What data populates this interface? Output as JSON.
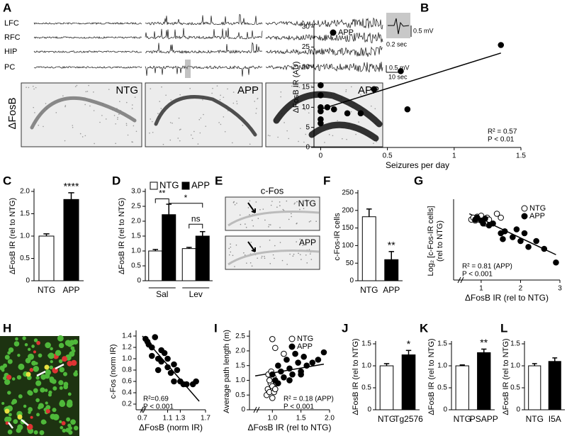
{
  "figure": {
    "panel_a": {
      "letter": "A",
      "channels": [
        "LFC",
        "RFC",
        "HIP",
        "PC"
      ],
      "scale_bars": [
        "0.5 mV",
        "0.2 sec",
        "0.5 mV",
        "10 sec"
      ],
      "row_label": "ΔFosB",
      "image_labels": [
        "NTG",
        "APP",
        "APP"
      ]
    },
    "panel_e": {
      "letter": "E",
      "title": "c-Fos",
      "image_labels": [
        "NTG",
        "APP"
      ]
    },
    "panel_h": {
      "letter": "H"
    }
  },
  "chart_data": [
    {
      "panel": "B",
      "type": "scatter",
      "xlabel": "Seizures per day",
      "ylabel": "ΔFosB IR (AU)",
      "xlim": [
        -0.05,
        1.5
      ],
      "xticks": [
        0,
        0.5,
        1,
        1.5
      ],
      "ylim": [
        0,
        30
      ],
      "yticks": [
        0,
        5,
        10,
        15,
        20,
        25,
        30
      ],
      "series": [
        {
          "name": "APP",
          "marker": "filled",
          "color": "#000000",
          "x": [
            0,
            0,
            0,
            0,
            0,
            0,
            0.05,
            0.1,
            0.2,
            0.3,
            0.4,
            0.6,
            0.65,
            1.35
          ],
          "values": [
            15.5,
            13,
            10,
            9,
            7,
            6,
            10,
            9.5,
            8.5,
            8.5,
            14.5,
            19,
            9.5,
            25.5
          ]
        }
      ],
      "fit": {
        "x": [
          0,
          1.35
        ],
        "y": [
          9.5,
          23.5
        ]
      },
      "annotations": [
        "R² = 0.57",
        "P < 0.01"
      ],
      "legend": true
    },
    {
      "panel": "C",
      "type": "bar",
      "ylabel": "ΔFosB IR (rel to NTG)",
      "categories": [
        "NTG",
        "APP"
      ],
      "values": [
        1.0,
        1.82
      ],
      "errors": [
        0.05,
        0.15
      ],
      "colors": [
        "#ffffff",
        "#000000"
      ],
      "significance": [
        null,
        "****"
      ],
      "ylim": [
        0,
        2.0
      ],
      "yticks": [
        0,
        0.5,
        {
          "value": 1,
          "label": "1.0"
        },
        1.5,
        {
          "value": 2,
          "label": "2.0"
        }
      ]
    },
    {
      "panel": "D",
      "type": "bar",
      "ylabel": "ΔFosB IR (rel to NTG)",
      "categories": [
        "Sal",
        "Lev"
      ],
      "series": [
        {
          "name": "NTG",
          "color": "#ffffff",
          "values": [
            1.0,
            1.08
          ],
          "errors": [
            0.05,
            0.04
          ]
        },
        {
          "name": "APP",
          "color": "#000000",
          "values": [
            2.22,
            1.5
          ],
          "errors": [
            0.35,
            0.15
          ]
        }
      ],
      "annotations": [
        "**",
        "*",
        "ns"
      ],
      "legend": true,
      "ylim": [
        0,
        3.0
      ],
      "yticks": [
        0,
        0.5,
        {
          "value": 1,
          "label": "1.0"
        },
        1.5,
        {
          "value": 2,
          "label": "2.0"
        },
        2.5,
        {
          "value": 3,
          "label": "3.0"
        }
      ]
    },
    {
      "panel": "F",
      "type": "bar",
      "ylabel": "c-Fos-IR cells",
      "categories": [
        "NTG",
        "APP"
      ],
      "values": [
        182,
        60
      ],
      "errors": [
        22,
        23
      ],
      "colors": [
        "#ffffff",
        "#000000"
      ],
      "significance": [
        null,
        "**"
      ],
      "ylim": [
        0,
        250
      ],
      "yticks": [
        0,
        50,
        100,
        150,
        200,
        250
      ]
    },
    {
      "panel": "G",
      "type": "scatter",
      "xlabel": "ΔFosB IR (rel to NTG)",
      "ylabel": [
        "Log₂ [c-Fos-IR cells]",
        "(rel to NTG)"
      ],
      "xlim": [
        0.3,
        3.0
      ],
      "xticks": [
        1,
        2,
        3
      ],
      "ylim": [
        -3,
        1
      ],
      "series": [
        {
          "name": "NTG",
          "marker": "open",
          "color": "#000000",
          "x": [
            0.75,
            0.8,
            0.85,
            0.9,
            0.95,
            1.0,
            1.05,
            1.1,
            1.15,
            1.2,
            1.4,
            1.5
          ],
          "values": [
            0.1,
            0.2,
            0.05,
            0.25,
            0.1,
            0.3,
            0.0,
            -0.1,
            0.2,
            0.1,
            0.4,
            0.2
          ]
        },
        {
          "name": "APP",
          "marker": "filled",
          "color": "#000000",
          "x": [
            0.85,
            0.9,
            1.0,
            1.05,
            1.1,
            1.2,
            1.3,
            1.5,
            1.55,
            1.6,
            1.8,
            1.9,
            2.0,
            2.1,
            2.2,
            2.4,
            2.6,
            2.9
          ],
          "values": [
            0.1,
            0.2,
            0.05,
            -0.1,
            0.15,
            -0.2,
            -0.1,
            -0.6,
            -0.9,
            -0.5,
            -0.8,
            -0.4,
            -1.0,
            -0.6,
            -1.3,
            -1.0,
            -1.4,
            -2.1
          ]
        }
      ],
      "fit": {
        "x": [
          0.7,
          2.9
        ],
        "y": [
          0.4,
          -1.7
        ]
      },
      "annotations": [
        "R² = 0.81 (APP)",
        "P < 0.001"
      ],
      "legend": true
    },
    {
      "panel": "H",
      "type": "scatter",
      "xlabel": "ΔFosB (norm IR)",
      "ylabel": "c-Fos (norm IR)",
      "xlim": [
        0.6,
        1.7
      ],
      "xticks": [
        0.7,
        1.1,
        1.3,
        1.7
      ],
      "ylim": [
        0.1,
        1.45
      ],
      "yticks": [
        0.2,
        0.4,
        0.6,
        0.8,
        {
          "value": 1,
          "label": "1.0"
        },
        1.2,
        1.4
      ],
      "series": [
        {
          "name": "cells",
          "marker": "filled",
          "color": "#000000",
          "x": [
            0.75,
            0.78,
            0.8,
            0.85,
            0.9,
            0.95,
            0.85,
            1.0,
            1.05,
            1.1,
            1.1,
            1.15,
            1.2,
            1.25,
            1.3,
            1.35,
            1.4,
            1.5,
            1.55,
            1.0,
            0.95,
            1.2
          ],
          "values": [
            1.35,
            1.3,
            1.25,
            1.2,
            1.38,
            1.0,
            1.05,
            1.15,
            1.1,
            1.0,
            0.85,
            0.75,
            0.9,
            0.8,
            0.6,
            0.55,
            0.55,
            0.55,
            0.6,
            0.95,
            0.8,
            0.6
          ]
        }
      ],
      "fit": {
        "x": [
          0.7,
          1.6
        ],
        "y": [
          1.4,
          0.25
        ]
      },
      "annotations": [
        "R²=0.69",
        "P < 0.001"
      ]
    },
    {
      "panel": "I",
      "type": "scatter",
      "xlabel": "ΔFosB IR (rel to NTG)",
      "ylabel": "Average path length (m)",
      "xlim": [
        0.6,
        2.0
      ],
      "xticks": [
        {
          "value": 1,
          "label": "1.0"
        },
        1.5,
        {
          "value": 2,
          "label": "2.0"
        }
      ],
      "ylim": [
        0,
        2.6
      ],
      "yticks": [
        0,
        0.5,
        {
          "value": 1,
          "label": "1.0"
        },
        1.5,
        {
          "value": 2,
          "label": "2.0"
        },
        2.5
      ],
      "series": [
        {
          "name": "NTG",
          "marker": "open",
          "color": "#000000",
          "x": [
            0.9,
            0.92,
            0.95,
            0.97,
            1.0,
            1.0,
            1.02,
            1.05,
            0.93,
            0.98,
            1.03,
            1.0,
            1.05,
            1.2,
            0.95,
            1.08
          ],
          "values": [
            0.5,
            0.7,
            0.6,
            0.9,
            0.8,
            2.4,
            1.1,
            2.1,
            1.2,
            1.3,
            0.6,
            0.4,
            0.7,
            1.9,
            1.0,
            0.9
          ]
        },
        {
          "name": "APP",
          "marker": "filled",
          "color": "#000000",
          "x": [
            1.0,
            1.05,
            1.1,
            1.15,
            1.2,
            1.25,
            1.3,
            1.35,
            1.4,
            1.45,
            1.5,
            1.55,
            1.6,
            1.7,
            1.8,
            1.9,
            1.1,
            1.3,
            1.5
          ],
          "values": [
            1.2,
            1.0,
            1.5,
            1.3,
            1.1,
            1.7,
            1.4,
            1.2,
            1.9,
            1.6,
            1.3,
            1.8,
            1.5,
            1.6,
            1.7,
            1.95,
            0.9,
            1.0,
            1.2
          ]
        }
      ],
      "fit": {
        "x": [
          0.7,
          1.9
        ],
        "y": [
          1.15,
          1.55
        ]
      },
      "annotations": [
        "R² = 0.18 (APP)",
        "P < 0.001"
      ],
      "legend": true
    },
    {
      "panel": "J",
      "type": "bar",
      "ylabel": "ΔFosB IR (rel to NTG)",
      "categories": [
        "NTG",
        "Tg2576"
      ],
      "values": [
        1.0,
        1.25
      ],
      "errors": [
        0.05,
        0.1
      ],
      "colors": [
        "#ffffff",
        "#000000"
      ],
      "significance": [
        null,
        "*"
      ],
      "ylim": [
        0,
        1.5
      ],
      "yticks": [
        0,
        0.5,
        {
          "value": 1,
          "label": "1.0"
        },
        1.5
      ]
    },
    {
      "panel": "K",
      "type": "bar",
      "ylabel": "ΔFosB IR (rel to NTG)",
      "categories": [
        "NTG",
        "PSAPP"
      ],
      "values": [
        1.0,
        1.3
      ],
      "errors": [
        0.02,
        0.08
      ],
      "colors": [
        "#ffffff",
        "#000000"
      ],
      "significance": [
        null,
        "**"
      ],
      "ylim": [
        0,
        1.5
      ],
      "yticks": [
        0,
        0.5,
        {
          "value": 1,
          "label": "1.0"
        },
        1.5
      ]
    },
    {
      "panel": "L",
      "type": "bar",
      "ylabel": "ΔFosB IR (rel to NTG)",
      "categories": [
        "NTG",
        "I5A"
      ],
      "values": [
        1.0,
        1.1
      ],
      "errors": [
        0.05,
        0.08
      ],
      "colors": [
        "#ffffff",
        "#000000"
      ],
      "ylim": [
        0,
        1.5
      ],
      "yticks": [
        0,
        0.5,
        {
          "value": 1,
          "label": "1.0"
        },
        1.5
      ]
    }
  ]
}
